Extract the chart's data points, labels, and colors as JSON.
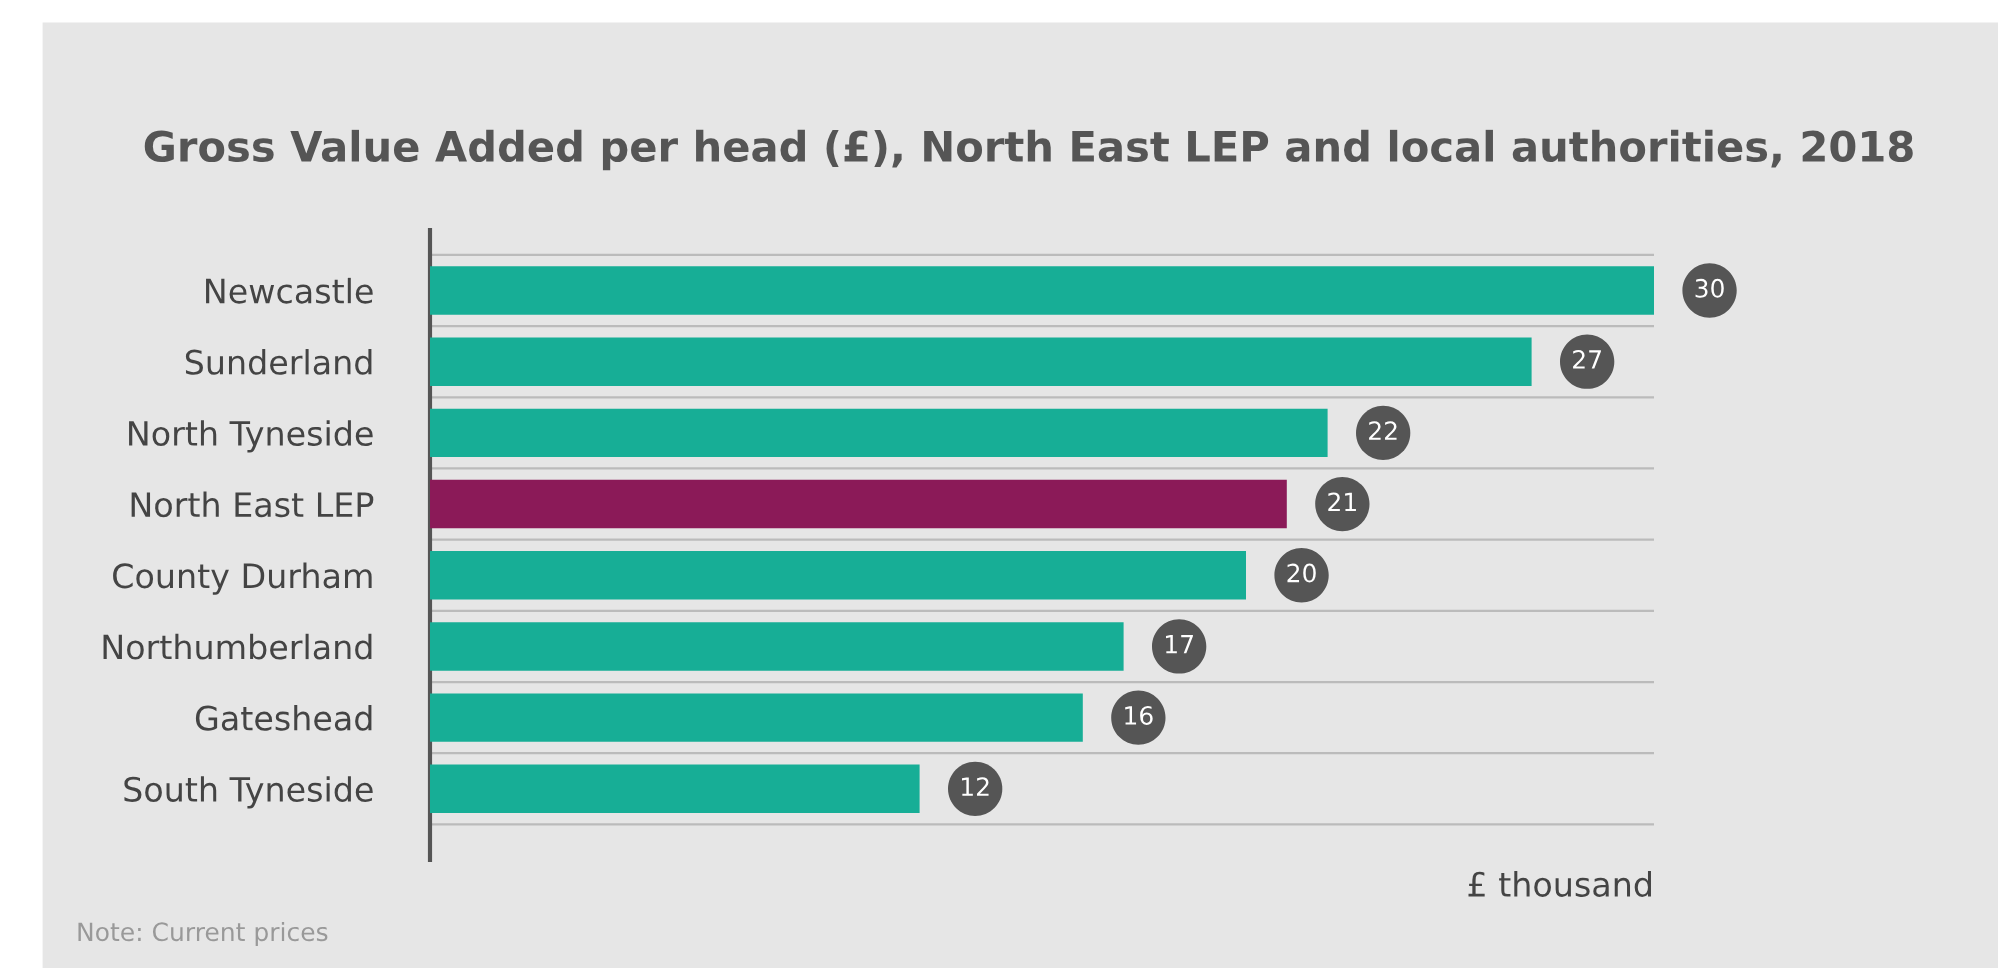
{
  "chart_data": {
    "type": "bar",
    "orientation": "horizontal",
    "title": "Gross Value Added per head (£), North East LEP and local authorities, 2018",
    "categories": [
      "Newcastle",
      "Sunderland",
      "North Tyneside",
      "North East LEP",
      "County Durham",
      "Northumberland",
      "Gateshead",
      "South Tyneside"
    ],
    "values": [
      30,
      27,
      22,
      21,
      20,
      17,
      16,
      12
    ],
    "colors": [
      "#17ae96",
      "#17ae96",
      "#17ae96",
      "#8b1a58",
      "#17ae96",
      "#17ae96",
      "#17ae96",
      "#17ae96"
    ],
    "data_labels": true,
    "xlabel": "£ thousand",
    "grid": "y",
    "tick_labels": "y",
    "annotations": [
      "Note: Current prices"
    ]
  }
}
